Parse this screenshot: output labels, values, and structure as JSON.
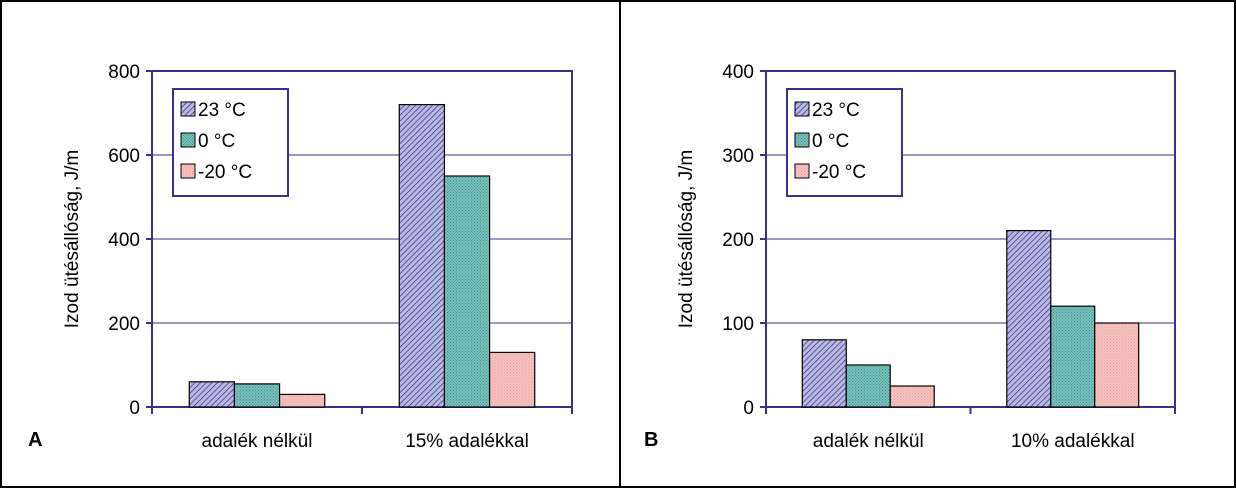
{
  "colors": {
    "series": [
      "#b9b9e8",
      "#77c2bd",
      "#f6c2c0"
    ],
    "hatch": [
      "#2e2e66",
      "#4b8f8a",
      "#e8a3a0"
    ],
    "axis": "#3a2f8f",
    "grid": "#3a2f8f",
    "border": "#000000"
  },
  "chart_data": [
    {
      "type": "bar",
      "panel_label": "A",
      "ylabel": "Izod ütésállóság, J/m",
      "ylim": [
        0,
        800
      ],
      "yticks": [
        0,
        200,
        400,
        600,
        800
      ],
      "categories": [
        "adalék nélkül",
        "15% adalékkal"
      ],
      "series": [
        {
          "name": "23 °C",
          "values": [
            60,
            720
          ]
        },
        {
          "name": "0 °C",
          "values": [
            55,
            550
          ]
        },
        {
          "name": "-20 °C",
          "values": [
            30,
            130
          ]
        }
      ],
      "grid": true,
      "legend": "top-left"
    },
    {
      "type": "bar",
      "panel_label": "B",
      "ylabel": "Izod ütésállóság, J/m",
      "ylim": [
        0,
        400
      ],
      "yticks": [
        0,
        100,
        200,
        300,
        400
      ],
      "categories": [
        "adalék nélkül",
        "10% adalékkal"
      ],
      "series": [
        {
          "name": "23 °C",
          "values": [
            80,
            210
          ]
        },
        {
          "name": "0 °C",
          "values": [
            50,
            120
          ]
        },
        {
          "name": "-20 °C",
          "values": [
            25,
            100
          ]
        }
      ],
      "grid": true,
      "legend": "top-left"
    }
  ]
}
